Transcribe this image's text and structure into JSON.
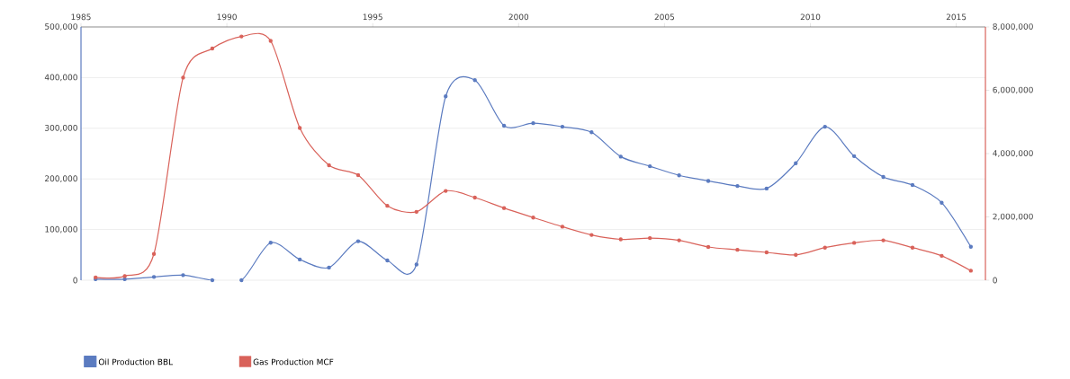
{
  "chart_data": {
    "type": "line",
    "x": [
      1985.5,
      1986.5,
      1987.5,
      1988.5,
      1989.5,
      1990.5,
      1991.5,
      1992.5,
      1993.5,
      1994.5,
      1995.5,
      1996.5,
      1997.5,
      1998.5,
      1999.5,
      2000.5,
      2001.5,
      2002.5,
      2003.5,
      2004.5,
      2005.5,
      2006.5,
      2007.5,
      2008.5,
      2009.5,
      2010.5,
      2011.5,
      2012.5,
      2013.5,
      2014.5,
      2015.5
    ],
    "series": [
      {
        "name": "Oil Production BBL",
        "color": "#5b7bc0",
        "values": [
          2000,
          2000,
          6500,
          10000,
          0,
          0,
          74000,
          41000,
          25000,
          77000,
          39000,
          31000,
          363000,
          395000,
          305000,
          310000,
          303000,
          292000,
          244000,
          225000,
          207000,
          196000,
          186000,
          181000,
          231000,
          303000,
          245000,
          204000,
          188000,
          153000,
          66000
        ]
      },
      {
        "name": "Gas Production MCF",
        "color": "#d9625a",
        "axis": "y2",
        "values": [
          90000,
          130000,
          830000,
          6400000,
          7320000,
          7700000,
          7560000,
          4810000,
          3630000,
          3320000,
          2350000,
          2160000,
          2820000,
          2610000,
          2280000,
          1980000,
          1690000,
          1430000,
          1290000,
          1330000,
          1260000,
          1050000,
          960000,
          880000,
          800000,
          1030000,
          1180000,
          1260000,
          1030000,
          770000,
          300000
        ]
      }
    ],
    "xlim": [
      1985,
      2016
    ],
    "xticks": [
      1985,
      1990,
      1995,
      2000,
      2005,
      2010,
      2015
    ],
    "ylim": [
      0,
      500000
    ],
    "yticks": [
      0,
      {
        "value": 100000,
        "label": "100,000"
      },
      {
        "value": 200000,
        "label": "200,000"
      },
      {
        "value": 300000,
        "label": "300,000"
      },
      {
        "value": 400000,
        "label": "400,000"
      },
      {
        "value": 500000,
        "label": "500,000"
      }
    ],
    "y2lim": [
      0,
      8000000
    ],
    "y2ticks": [
      0,
      {
        "value": 2000000,
        "label": "2,000,000"
      },
      {
        "value": 4000000,
        "label": "4,000,000"
      },
      {
        "value": 6000000,
        "label": "6,000,000"
      },
      {
        "value": 8000000,
        "label": "8,000,000"
      }
    ],
    "grid": "y",
    "legend": "bottom left",
    "marker": "circle",
    "line_style": "solid"
  }
}
